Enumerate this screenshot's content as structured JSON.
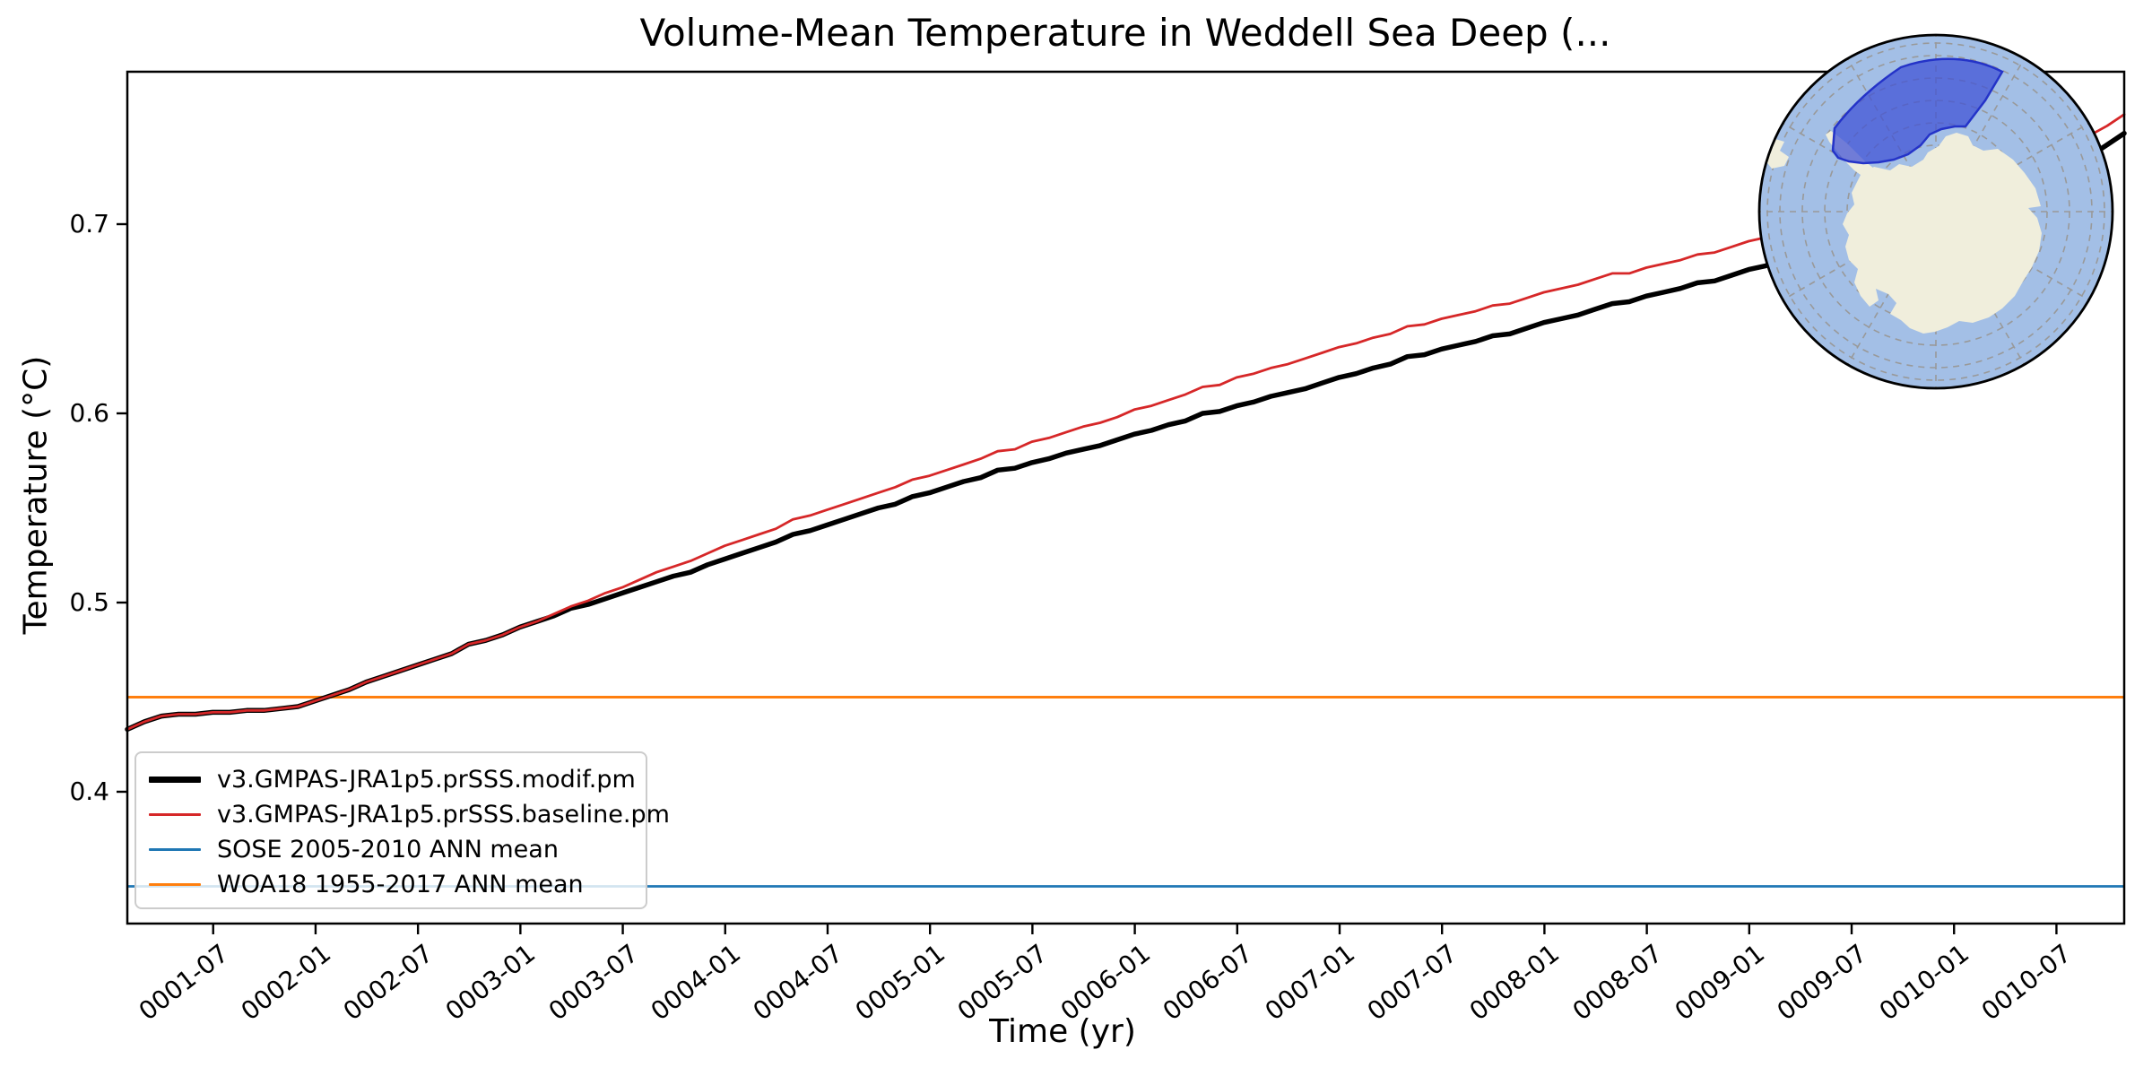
{
  "figure": {
    "title": "Volume-Mean Temperature in Weddell Sea Deep (...",
    "xlabel": "Time (yr)",
    "ylabel": "Temperature (°C)"
  },
  "chart_data": {
    "type": "line",
    "title": "Volume-Mean Temperature in Weddell Sea Deep (...",
    "xlabel": "Time (yr)",
    "ylabel": "Temperature (°C)",
    "x_frequency": "monthly",
    "x_start": "0001-01",
    "x_end": "0010-10",
    "x_tick_labels": [
      "0001-07",
      "0002-01",
      "0002-07",
      "0003-01",
      "0003-07",
      "0004-01",
      "0004-07",
      "0005-01",
      "0005-07",
      "0006-01",
      "0006-07",
      "0007-01",
      "0007-07",
      "0008-01",
      "0008-07",
      "0009-01",
      "0009-07",
      "0010-01",
      "0010-07"
    ],
    "y_tick_values": [
      0.4,
      0.5,
      0.6,
      0.7
    ],
    "y_tick_labels": [
      "0.4",
      "0.5",
      "0.6",
      "0.7"
    ],
    "ylim": [
      0.33,
      0.781
    ],
    "grid": false,
    "legend_position": "lower left",
    "series": [
      {
        "name": "v3.GMPAS-JRA1p5.prSSS.modif.pm",
        "color": "#000000",
        "linewidth": 5.5,
        "values": [
          0.433,
          0.437,
          0.44,
          0.441,
          0.441,
          0.442,
          0.442,
          0.443,
          0.443,
          0.444,
          0.445,
          0.448,
          0.451,
          0.454,
          0.458,
          0.461,
          0.464,
          0.467,
          0.47,
          0.473,
          0.478,
          0.48,
          0.483,
          0.487,
          0.49,
          0.493,
          0.497,
          0.499,
          0.502,
          0.505,
          0.508,
          0.511,
          0.514,
          0.516,
          0.52,
          0.523,
          0.526,
          0.529,
          0.532,
          0.536,
          0.538,
          0.541,
          0.544,
          0.547,
          0.55,
          0.552,
          0.556,
          0.558,
          0.561,
          0.564,
          0.566,
          0.57,
          0.571,
          0.574,
          0.576,
          0.579,
          0.581,
          0.583,
          0.586,
          0.589,
          0.591,
          0.594,
          0.596,
          0.6,
          0.601,
          0.604,
          0.606,
          0.609,
          0.611,
          0.613,
          0.616,
          0.619,
          0.621,
          0.624,
          0.626,
          0.63,
          0.631,
          0.634,
          0.636,
          0.638,
          0.641,
          0.642,
          0.645,
          0.648,
          0.65,
          0.652,
          0.655,
          0.658,
          0.659,
          0.662,
          0.664,
          0.666,
          0.669,
          0.67,
          0.673,
          0.676,
          0.678,
          0.681,
          0.684,
          0.688,
          0.69,
          0.692,
          0.695,
          0.697,
          0.7,
          0.701,
          0.705,
          0.707,
          0.71,
          0.712,
          0.713,
          0.716,
          0.721,
          0.725,
          0.73,
          0.736,
          0.742,
          0.748
        ]
      },
      {
        "name": "v3.GMPAS-JRA1p5.prSSS.baseline.pm",
        "color": "#d62728",
        "linewidth": 2.8,
        "values": [
          0.433,
          0.437,
          0.44,
          0.441,
          0.441,
          0.442,
          0.442,
          0.443,
          0.443,
          0.444,
          0.445,
          0.448,
          0.451,
          0.454,
          0.458,
          0.461,
          0.464,
          0.467,
          0.47,
          0.473,
          0.478,
          0.48,
          0.483,
          0.487,
          0.49,
          0.494,
          0.498,
          0.501,
          0.505,
          0.508,
          0.512,
          0.516,
          0.519,
          0.522,
          0.526,
          0.53,
          0.533,
          0.536,
          0.539,
          0.544,
          0.546,
          0.549,
          0.552,
          0.555,
          0.558,
          0.561,
          0.565,
          0.567,
          0.57,
          0.573,
          0.576,
          0.58,
          0.581,
          0.585,
          0.587,
          0.59,
          0.593,
          0.595,
          0.598,
          0.602,
          0.604,
          0.607,
          0.61,
          0.614,
          0.615,
          0.619,
          0.621,
          0.624,
          0.626,
          0.629,
          0.632,
          0.635,
          0.637,
          0.64,
          0.642,
          0.646,
          0.647,
          0.65,
          0.652,
          0.654,
          0.657,
          0.658,
          0.661,
          0.664,
          0.666,
          0.668,
          0.671,
          0.674,
          0.674,
          0.677,
          0.679,
          0.681,
          0.684,
          0.685,
          0.688,
          0.691,
          0.693,
          0.696,
          0.698,
          0.702,
          0.704,
          0.705,
          0.708,
          0.71,
          0.713,
          0.714,
          0.717,
          0.719,
          0.722,
          0.724,
          0.725,
          0.728,
          0.732,
          0.736,
          0.741,
          0.747,
          0.752,
          0.758
        ]
      },
      {
        "name": "SOSE 2005-2010 ANN mean",
        "color": "#1f77b4",
        "linewidth": 2.8,
        "constant": 0.35
      },
      {
        "name": "WOA18 1955-2017 ANN mean",
        "color": "#ff7f0e",
        "linewidth": 3.0,
        "constant": 0.45
      }
    ]
  },
  "inset_map": {
    "description": "South polar stereographic inset with Weddell Sea region highlighted",
    "colors": {
      "ocean": "#a3bfe6",
      "land": "#f0eedc",
      "region_fill": "#3f51d6",
      "region_edge": "#2433c8",
      "graticule": "#999999",
      "border": "#000000"
    }
  }
}
